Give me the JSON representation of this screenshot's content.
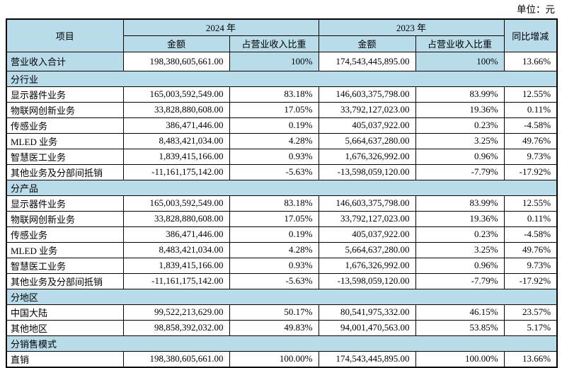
{
  "unit_label": "单位：元",
  "colors": {
    "header_bg": "#b9dcea",
    "border": "#000000",
    "text": "#000000"
  },
  "table": {
    "headers": {
      "item": "项目",
      "year_2024": "2024 年",
      "year_2023": "2023 年",
      "amount": "金额",
      "ratio": "占营业收入比重",
      "yoy": "同比增减"
    },
    "total_row": {
      "label": "营业收入合计",
      "values": [
        "198,380,605,661.00",
        "100%",
        "174,543,445,895.00",
        "100%",
        "13.66%"
      ]
    },
    "sections": [
      {
        "title": "分行业",
        "rows": [
          [
            "显示器件业务",
            "165,003,592,549.00",
            "83.18%",
            "146,603,375,798.00",
            "83.99%",
            "12.55%"
          ],
          [
            "物联网创新业务",
            "33,828,880,608.00",
            "17.05%",
            "33,792,127,023.00",
            "19.36%",
            "0.11%"
          ],
          [
            "传感业务",
            "386,471,446.00",
            "0.19%",
            "405,037,922.00",
            "0.23%",
            "-4.58%"
          ],
          [
            "MLED 业务",
            "8,483,421,034.00",
            "4.28%",
            "5,664,637,280.00",
            "3.25%",
            "49.76%"
          ],
          [
            "智慧医工业务",
            "1,839,415,166.00",
            "0.93%",
            "1,676,326,992.00",
            "0.96%",
            "9.73%"
          ],
          [
            "其他业务及分部间抵销",
            "-11,161,175,142.00",
            "-5.63%",
            "-13,598,059,120.00",
            "-7.79%",
            "-17.92%"
          ]
        ]
      },
      {
        "title": "分产品",
        "rows": [
          [
            "显示器件业务",
            "165,003,592,549.00",
            "83.18%",
            "146,603,375,798.00",
            "83.99%",
            "12.55%"
          ],
          [
            "物联网创新业务",
            "33,828,880,608.00",
            "17.05%",
            "33,792,127,023.00",
            "19.36%",
            "0.11%"
          ],
          [
            "传感业务",
            "386,471,446.00",
            "0.19%",
            "405,037,922.00",
            "0.23%",
            "-4.58%"
          ],
          [
            "MLED 业务",
            "8,483,421,034.00",
            "4.28%",
            "5,664,637,280.00",
            "3.25%",
            "49.76%"
          ],
          [
            "智慧医工业务",
            "1,839,415,166.00",
            "0.93%",
            "1,676,326,992.00",
            "0.96%",
            "9.73%"
          ],
          [
            "其他业务及分部间抵销",
            "-11,161,175,142.00",
            "-5.63%",
            "-13,598,059,120.00",
            "-7.79%",
            "-17.92%"
          ]
        ]
      },
      {
        "title": "分地区",
        "rows": [
          [
            "中国大陆",
            "99,522,213,629.00",
            "50.17%",
            "80,541,975,332.00",
            "46.15%",
            "23.57%"
          ],
          [
            "其他地区",
            "98,858,392,032.00",
            "49.83%",
            "94,001,470,563.00",
            "53.85%",
            "5.17%"
          ]
        ]
      },
      {
        "title": "分销售模式",
        "rows": [
          [
            "直销",
            "198,380,605,661.00",
            "100.00%",
            "174,543,445,895.00",
            "100.00%",
            "13.66%"
          ]
        ]
      }
    ]
  }
}
